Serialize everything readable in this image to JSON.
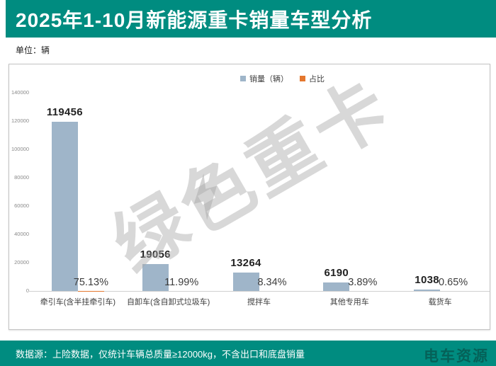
{
  "header": {
    "title": "2025年1-10月新能源重卡销量车型分析"
  },
  "meta": {
    "unit_label": "单位：辆"
  },
  "chart_data": {
    "type": "bar",
    "title": "2025年1-10月新能源重卡销量车型分析",
    "categories": [
      "牵引车(含半挂牵引车)",
      "自卸车(含自卸式垃圾车)",
      "搅拌车",
      "其他专用车",
      "载货车"
    ],
    "series": [
      {
        "name": "销量（辆）",
        "color": "#9FB5C9",
        "values": [
          119456,
          19056,
          13264,
          6190,
          1038
        ],
        "data_labels": [
          "119456",
          "19056",
          "13264",
          "6190",
          "1038"
        ]
      },
      {
        "name": "占比",
        "color": "#E4772E",
        "values": [
          75.13,
          11.99,
          8.34,
          3.89,
          0.65
        ],
        "data_labels": [
          "75.13%",
          "11.99%",
          "8.34%",
          "3.89%",
          "0.65%"
        ]
      }
    ],
    "xlabel": "",
    "ylabel": "",
    "ylim": [
      0,
      140000
    ],
    "ytick_step": 20000,
    "yticks": [
      "0",
      "20000",
      "40000",
      "60000",
      "80000",
      "100000",
      "120000",
      "140000"
    ],
    "grid": false,
    "legend_position": "top-center"
  },
  "watermarks": {
    "diagonal_text": "绿色重卡",
    "footer_logo_text": "电车资源"
  },
  "footer": {
    "source_note": "数据源：上险数据，仅统计车辆总质量≥12000kg，不含出口和底盘销量"
  },
  "colors": {
    "brand_teal": "#008C80",
    "bar_blue": "#9FB5C9",
    "ratio_orange": "#E4772E",
    "watermark_gray": "#A8A8A8"
  }
}
